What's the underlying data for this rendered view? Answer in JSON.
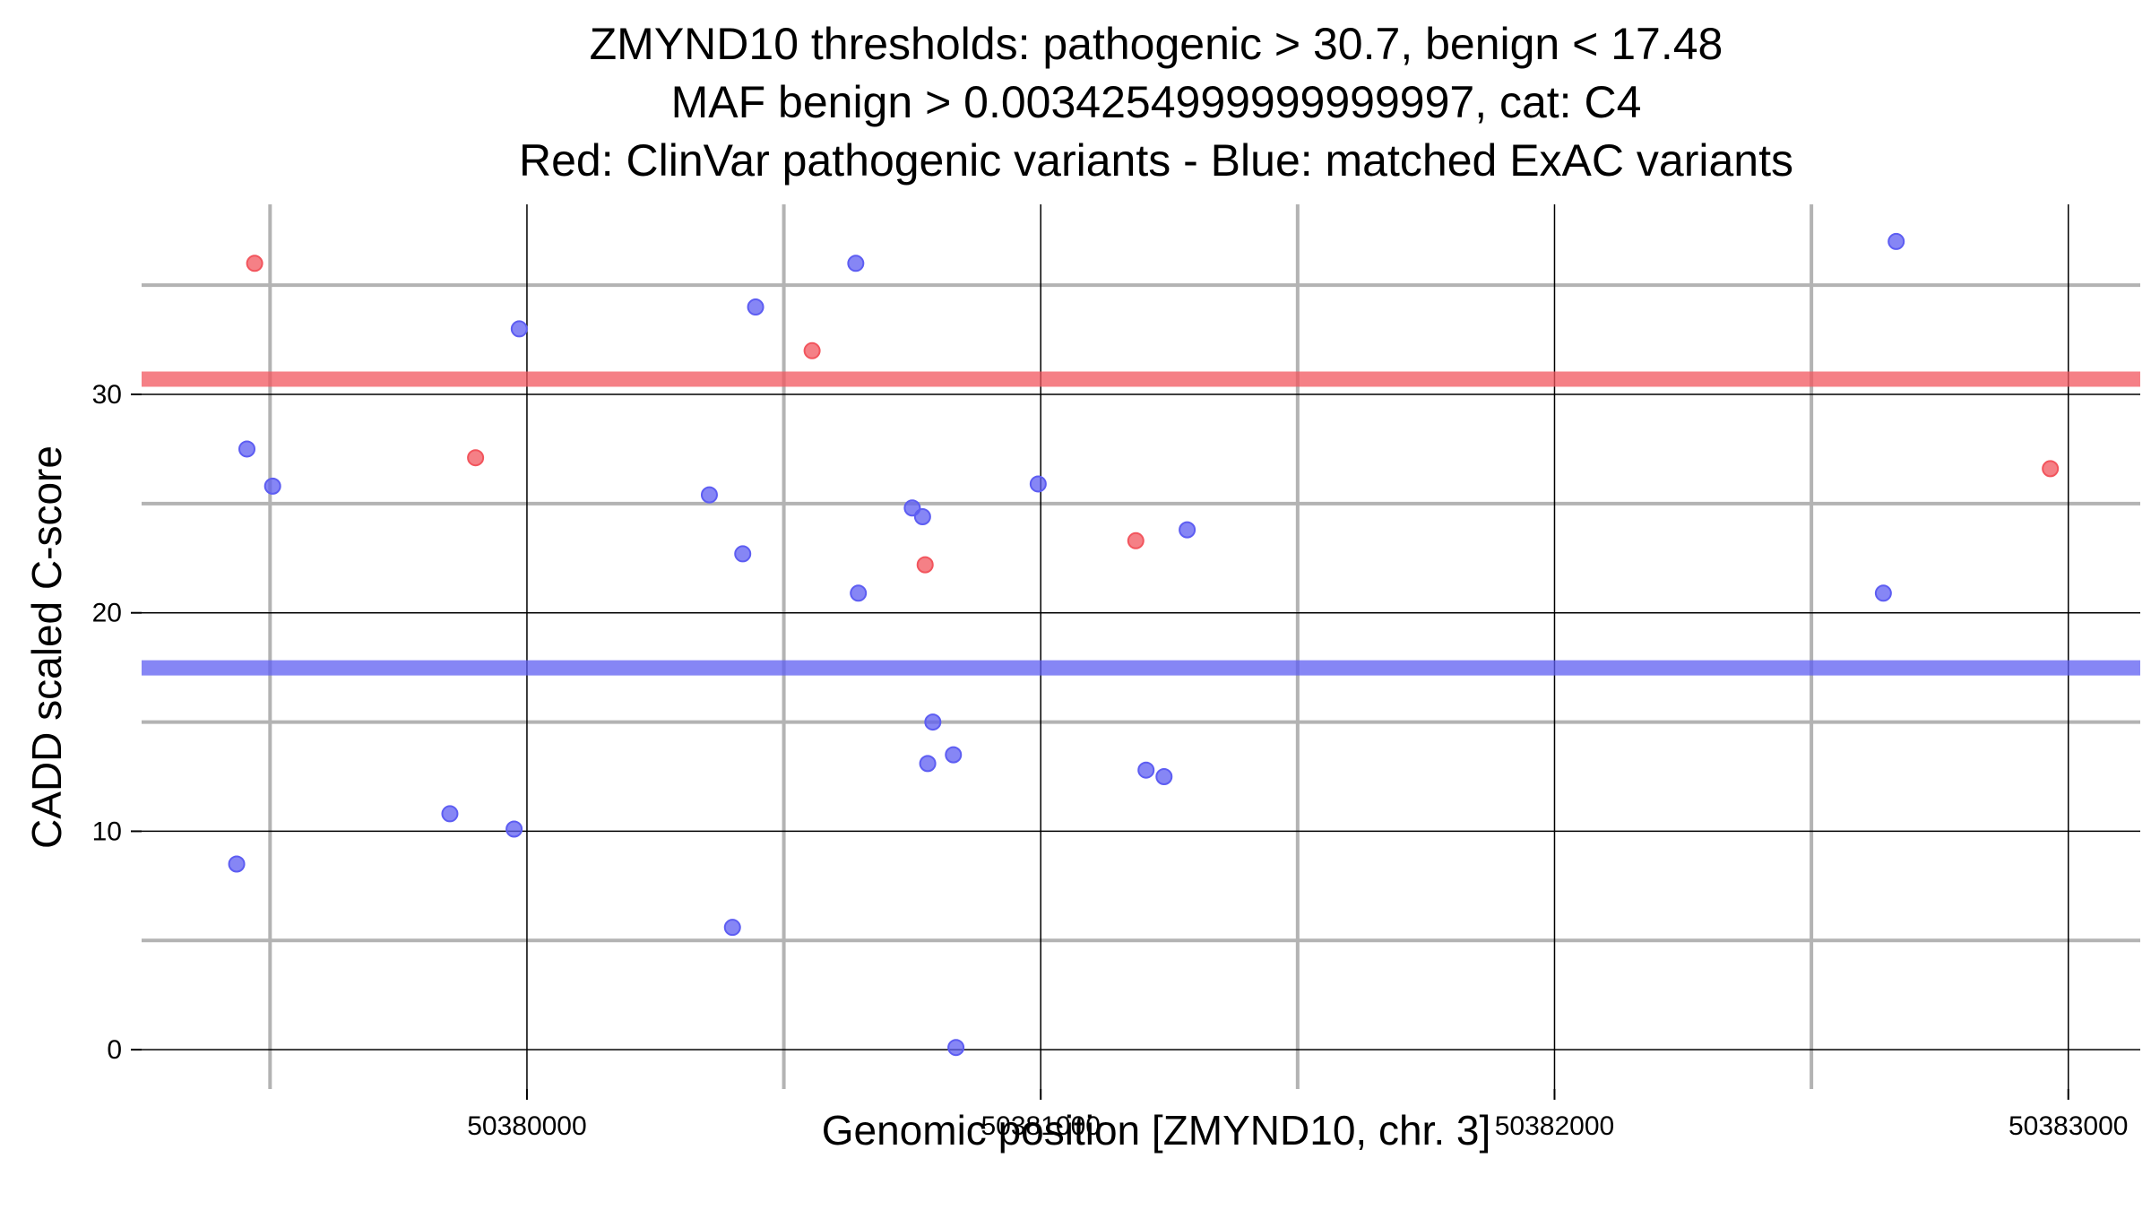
{
  "chart_data": {
    "type": "scatter",
    "title_lines": [
      "ZMYND10 thresholds: pathogenic > 30.7, benign < 17.48",
      "MAF benign > 0.0034254999999999997, cat: C4",
      "Red: ClinVar pathogenic variants - Blue: matched ExAC variants"
    ],
    "xlabel": "Genomic position [ZMYND10, chr. 3]",
    "ylabel": "CADD scaled C-score",
    "xlim": [
      50379250,
      50383140
    ],
    "ylim": [
      -1.8,
      38.7
    ],
    "x_major_ticks": [
      50380000,
      50381000,
      50382000,
      50383000
    ],
    "x_major_tick_labels": [
      "50380000",
      "50381000",
      "50382000",
      "50383000"
    ],
    "x_minor_gridlines": [
      50379500,
      50380500,
      50381500,
      50382500
    ],
    "y_major_ticks": [
      0,
      10,
      20,
      30
    ],
    "y_major_tick_labels": [
      "0",
      "10",
      "20",
      "30"
    ],
    "y_minor_gridlines": [
      5,
      15,
      25,
      35
    ],
    "thresholds": [
      {
        "name": "pathogenic",
        "value": 30.7,
        "color": "#f2555d"
      },
      {
        "name": "benign",
        "value": 17.48,
        "color": "#5d5df2"
      }
    ],
    "series": [
      {
        "name": "ClinVar pathogenic variants",
        "color": "#f2555d",
        "points": [
          {
            "x": 50379470,
            "y": 36.0
          },
          {
            "x": 50379900,
            "y": 27.1
          },
          {
            "x": 50380555,
            "y": 32.0
          },
          {
            "x": 50380775,
            "y": 22.2
          },
          {
            "x": 50381185,
            "y": 23.3
          },
          {
            "x": 50382965,
            "y": 26.6
          }
        ]
      },
      {
        "name": "matched ExAC variants",
        "color": "#5d5df2",
        "points": [
          {
            "x": 50379435,
            "y": 8.5
          },
          {
            "x": 50379455,
            "y": 27.5
          },
          {
            "x": 50379505,
            "y": 25.8
          },
          {
            "x": 50379850,
            "y": 10.8
          },
          {
            "x": 50379975,
            "y": 10.1
          },
          {
            "x": 50379985,
            "y": 33.0
          },
          {
            "x": 50380355,
            "y": 25.4
          },
          {
            "x": 50380400,
            "y": 5.6
          },
          {
            "x": 50380420,
            "y": 22.7
          },
          {
            "x": 50380445,
            "y": 34.0
          },
          {
            "x": 50380640,
            "y": 36.0
          },
          {
            "x": 50380645,
            "y": 20.9
          },
          {
            "x": 50380750,
            "y": 24.8
          },
          {
            "x": 50380770,
            "y": 24.4
          },
          {
            "x": 50380780,
            "y": 13.1
          },
          {
            "x": 50380790,
            "y": 15.0
          },
          {
            "x": 50380830,
            "y": 13.5
          },
          {
            "x": 50380835,
            "y": 0.1
          },
          {
            "x": 50380995,
            "y": 25.9
          },
          {
            "x": 50381205,
            "y": 12.8
          },
          {
            "x": 50381240,
            "y": 12.5
          },
          {
            "x": 50381285,
            "y": 23.8
          },
          {
            "x": 50382640,
            "y": 20.9
          },
          {
            "x": 50382665,
            "y": 37.0
          }
        ]
      }
    ]
  }
}
